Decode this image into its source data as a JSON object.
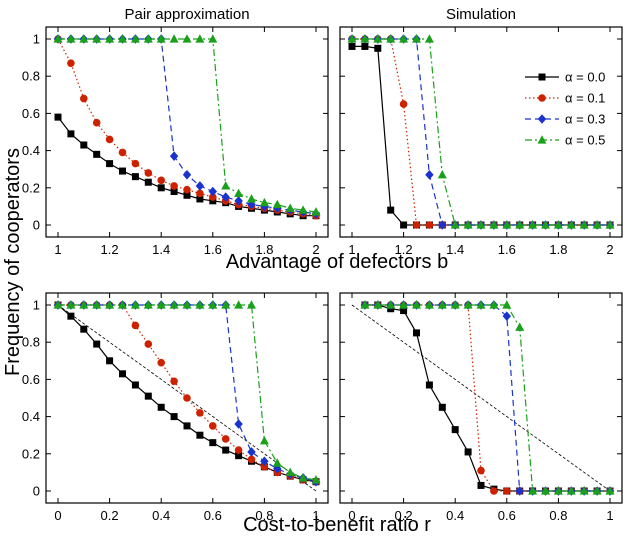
{
  "figure": {
    "top_xlabel": "Advantage of defectors b",
    "bottom_xlabel": "Cost-to-benefit ratio r",
    "ylabel": "Frequency of cooperators"
  },
  "colors": {
    "alpha_0.0": "#000000",
    "alpha_0.1": "#cc2200",
    "alpha_0.3": "#1a33cc",
    "alpha_0.5": "#1aa01a"
  },
  "legend": {
    "entries": [
      "α = 0.0",
      "α = 0.1",
      "α = 0.3",
      "α = 0.5"
    ],
    "position": "top-right of top-right panel"
  },
  "chart_data": [
    {
      "type": "line",
      "title": "Pair approximation",
      "xlim": [
        1,
        2
      ],
      "ylim": [
        0,
        1
      ],
      "xticks": [
        "1",
        "1.2",
        "1.4",
        "1.6",
        "1.8",
        "2"
      ],
      "yticks": [
        "0",
        "0.2",
        "0.4",
        "0.6",
        "0.8",
        "1"
      ],
      "x": [
        1,
        1.05,
        1.1,
        1.15,
        1.2,
        1.25,
        1.3,
        1.35,
        1.4,
        1.45,
        1.5,
        1.55,
        1.6,
        1.65,
        1.7,
        1.75,
        1.8,
        1.85,
        1.9,
        1.95,
        2
      ],
      "series": [
        {
          "name": "α = 0.0",
          "marker": "square",
          "dash": "solid",
          "values": [
            0.58,
            0.49,
            0.43,
            0.38,
            0.33,
            0.29,
            0.26,
            0.23,
            0.2,
            0.18,
            0.16,
            0.14,
            0.13,
            0.12,
            0.1,
            0.09,
            0.08,
            0.07,
            0.06,
            0.05,
            0.05
          ]
        },
        {
          "name": "α = 0.1",
          "marker": "circle",
          "dash": "dotted",
          "values": [
            1.0,
            0.87,
            0.68,
            0.55,
            0.46,
            0.39,
            0.33,
            0.28,
            0.24,
            0.21,
            0.19,
            0.17,
            0.15,
            0.13,
            0.11,
            0.1,
            0.09,
            0.08,
            0.07,
            0.06,
            0.05
          ]
        },
        {
          "name": "α = 0.3",
          "marker": "diamond",
          "dash": "dashed",
          "values": [
            1,
            1,
            1,
            1,
            1,
            1,
            1,
            1,
            1,
            0.37,
            0.27,
            0.21,
            0.18,
            0.15,
            0.13,
            0.11,
            0.1,
            0.09,
            0.08,
            0.07,
            0.06
          ]
        },
        {
          "name": "α = 0.5",
          "marker": "triangle",
          "dash": "dashdot",
          "values": [
            1,
            1,
            1,
            1,
            1,
            1,
            1,
            1,
            1,
            1,
            1,
            1,
            1,
            0.21,
            0.17,
            0.14,
            0.12,
            0.11,
            0.09,
            0.08,
            0.07
          ]
        }
      ]
    },
    {
      "type": "line",
      "title": "Simulation",
      "xlim": [
        1,
        2
      ],
      "ylim": [
        0,
        1
      ],
      "xticks": [
        "1",
        "1.2",
        "1.4",
        "1.6",
        "1.8",
        "2"
      ],
      "yticks": [
        "0",
        "0.2",
        "0.4",
        "0.6",
        "0.8",
        "1"
      ],
      "x": [
        1,
        1.05,
        1.1,
        1.15,
        1.2,
        1.25,
        1.3,
        1.35,
        1.4,
        1.45,
        1.5,
        1.55,
        1.6,
        1.65,
        1.7,
        1.75,
        1.8,
        1.85,
        1.9,
        1.95,
        2
      ],
      "series": [
        {
          "name": "α = 0.0",
          "marker": "square",
          "dash": "solid",
          "values": [
            0.96,
            0.96,
            0.95,
            0.08,
            0,
            0,
            0,
            0,
            0,
            0,
            0,
            0,
            0,
            0,
            0,
            0,
            0,
            0,
            0,
            0,
            0
          ]
        },
        {
          "name": "α = 0.1",
          "marker": "circle",
          "dash": "dotted",
          "values": [
            1,
            1,
            1,
            1,
            0.65,
            0,
            0,
            0,
            0,
            0,
            0,
            0,
            0,
            0,
            0,
            0,
            0,
            0,
            0,
            0,
            0
          ]
        },
        {
          "name": "α = 0.3",
          "marker": "diamond",
          "dash": "dashed",
          "values": [
            1,
            1,
            1,
            1,
            1,
            1,
            0.27,
            0,
            0,
            0,
            0,
            0,
            0,
            0,
            0,
            0,
            0,
            0,
            0,
            0,
            0
          ]
        },
        {
          "name": "α = 0.5",
          "marker": "triangle",
          "dash": "dashdot",
          "values": [
            1,
            1,
            1,
            1,
            1,
            1,
            1,
            0.27,
            0,
            0,
            0,
            0,
            0,
            0,
            0,
            0,
            0,
            0,
            0,
            0,
            0
          ]
        }
      ]
    },
    {
      "type": "line",
      "xlim": [
        0,
        1
      ],
      "ylim": [
        0,
        1
      ],
      "xticks": [
        "0",
        "0.2",
        "0.4",
        "0.6",
        "0.8",
        "1"
      ],
      "yticks": [
        "0",
        "0.2",
        "0.4",
        "0.6",
        "0.8",
        "1"
      ],
      "x": [
        0,
        0.05,
        0.1,
        0.15,
        0.2,
        0.25,
        0.3,
        0.35,
        0.4,
        0.45,
        0.5,
        0.55,
        0.6,
        0.65,
        0.7,
        0.75,
        0.8,
        0.85,
        0.9,
        0.95,
        1
      ],
      "reference_line": [
        [
          0,
          1
        ],
        [
          1,
          0
        ]
      ],
      "series": [
        {
          "name": "α = 0.0",
          "marker": "square",
          "dash": "solid",
          "values": [
            1.0,
            0.94,
            0.87,
            0.79,
            0.7,
            0.63,
            0.57,
            0.51,
            0.45,
            0.4,
            0.35,
            0.3,
            0.26,
            0.22,
            0.19,
            0.16,
            0.13,
            0.1,
            0.08,
            0.06,
            0.05
          ]
        },
        {
          "name": "α = 0.1",
          "marker": "circle",
          "dash": "dotted",
          "values": [
            1,
            1,
            1,
            1,
            1,
            1,
            0.89,
            0.79,
            0.69,
            0.59,
            0.5,
            0.42,
            0.35,
            0.28,
            0.22,
            0.17,
            0.13,
            0.1,
            0.08,
            0.06,
            0.05
          ]
        },
        {
          "name": "α = 0.3",
          "marker": "diamond",
          "dash": "dashed",
          "values": [
            1,
            1,
            1,
            1,
            1,
            1,
            1,
            1,
            1,
            1,
            1,
            1,
            1,
            1,
            0.36,
            0.21,
            0.16,
            0.12,
            0.09,
            0.07,
            0.05
          ]
        },
        {
          "name": "α = 0.5",
          "marker": "triangle",
          "dash": "dashdot",
          "values": [
            1,
            1,
            1,
            1,
            1,
            1,
            1,
            1,
            1,
            1,
            1,
            1,
            1,
            1,
            1,
            1,
            0.27,
            0.15,
            0.1,
            0.07,
            0.06
          ]
        }
      ]
    },
    {
      "type": "line",
      "xlim": [
        0,
        1
      ],
      "ylim": [
        0,
        1
      ],
      "xticks": [
        "0",
        "0.2",
        "0.4",
        "0.6",
        "0.8",
        "1"
      ],
      "yticks": [
        "0",
        "0.2",
        "0.4",
        "0.6",
        "0.8",
        "1"
      ],
      "x": [
        0,
        0.05,
        0.1,
        0.15,
        0.2,
        0.25,
        0.3,
        0.35,
        0.4,
        0.45,
        0.5,
        0.55,
        0.6,
        0.65,
        0.7,
        0.75,
        0.8,
        0.85,
        0.9,
        0.95,
        1
      ],
      "reference_line": [
        [
          0,
          1
        ],
        [
          1,
          0
        ]
      ],
      "series": [
        {
          "name": "α = 0.0",
          "marker": "square",
          "dash": "solid",
          "values": [
            null,
            1,
            1,
            0.98,
            0.97,
            0.85,
            0.57,
            0.45,
            0.33,
            0.21,
            0.03,
            0.01,
            0,
            0,
            0,
            0,
            0,
            0,
            0,
            0,
            0
          ]
        },
        {
          "name": "α = 0.1",
          "marker": "circle",
          "dash": "dotted",
          "values": [
            null,
            1,
            1,
            1,
            1,
            1,
            1,
            1,
            1,
            1,
            0.11,
            0,
            0,
            0,
            0,
            0,
            0,
            0,
            0,
            0,
            0
          ]
        },
        {
          "name": "α = 0.3",
          "marker": "diamond",
          "dash": "dashed",
          "values": [
            null,
            1,
            1,
            1,
            1,
            1,
            1,
            1,
            1,
            1,
            1,
            1,
            0.94,
            0,
            0,
            0,
            0,
            0,
            0,
            0,
            0
          ]
        },
        {
          "name": "α = 0.5",
          "marker": "triangle",
          "dash": "dashdot",
          "values": [
            null,
            1,
            1,
            1,
            1,
            1,
            1,
            1,
            1,
            1,
            1,
            1,
            1,
            0.88,
            0,
            0,
            0,
            0,
            0,
            0,
            0
          ]
        }
      ]
    }
  ]
}
